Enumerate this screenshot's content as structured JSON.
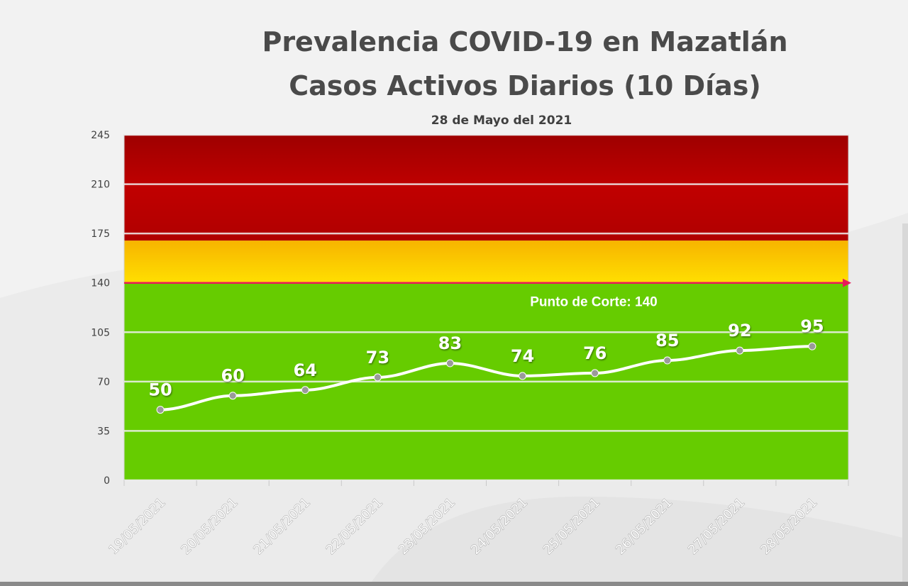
{
  "header": {
    "title_line1": "Prevalencia COVID-19 en Mazatlán",
    "title_line2": "Casos Activos Diarios (10 Días)",
    "subtitle": "28 de Mayo del 2021"
  },
  "chart_data": {
    "type": "line",
    "title": "Prevalencia COVID-19 en Mazatlán\nCasos Activos Diarios (10 Días)",
    "subtitle": "28 de Mayo del 2021",
    "categories": [
      "19/05/2021",
      "20/05/2021",
      "21/05/2021",
      "22/05/2021",
      "23/05/2021",
      "24/05/2021",
      "25/05/2021",
      "26/05/2021",
      "27/05/2021",
      "28/05/2021"
    ],
    "values": [
      50,
      60,
      64,
      73,
      83,
      74,
      76,
      85,
      92,
      95
    ],
    "yticks": [
      0,
      35,
      70,
      105,
      140,
      175,
      210,
      245
    ],
    "ylim": [
      0,
      245
    ],
    "grid": true,
    "xlabel": "",
    "ylabel": "",
    "bands": [
      {
        "from": 0,
        "to": 140,
        "color": "#66cc00"
      },
      {
        "from": 140,
        "to": 170,
        "color": "#ffd700"
      },
      {
        "from": 170,
        "to": 245,
        "color": "#b80000"
      }
    ],
    "reference_line": {
      "value": 140,
      "label": "Punto de Corte: 140",
      "color": "#e8195a"
    },
    "line_color": "#ffffff",
    "marker_color": "#9a9a9a"
  }
}
